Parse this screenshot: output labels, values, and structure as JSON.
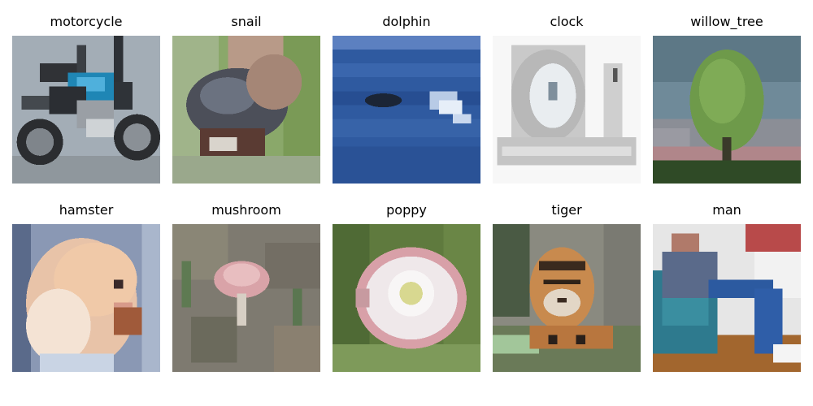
{
  "figure": {
    "background": "#ffffff",
    "panels": [
      {
        "label": "motorcycle"
      },
      {
        "label": "snail"
      },
      {
        "label": "dolphin"
      },
      {
        "label": "clock"
      },
      {
        "label": "willow_tree"
      },
      {
        "label": "hamster"
      },
      {
        "label": "mushroom"
      },
      {
        "label": "poppy"
      },
      {
        "label": "tiger"
      },
      {
        "label": "man"
      }
    ]
  }
}
